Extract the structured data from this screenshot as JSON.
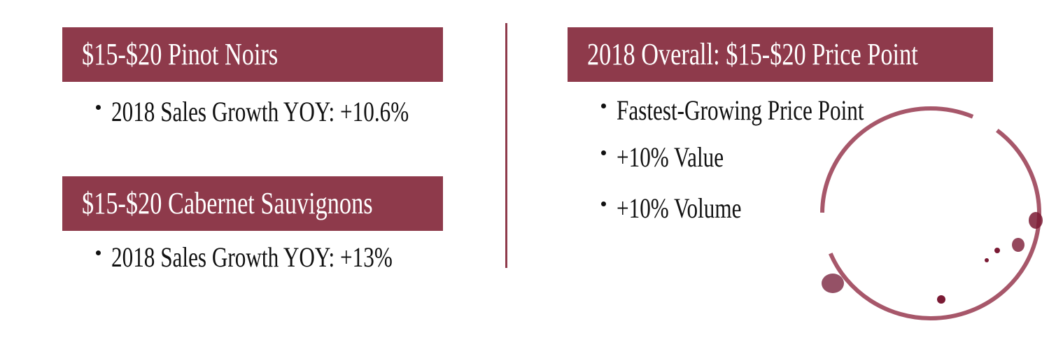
{
  "left_panels": [
    {
      "title": "$15-$20 Pinot Noirs",
      "bullets": [
        "2018 Sales Growth YOY: +10.6%"
      ]
    },
    {
      "title": "$15-$20 Cabernet Sauvignons",
      "bullets": [
        "2018 Sales Growth YOY: +13%"
      ]
    }
  ],
  "right_panel": {
    "title": "2018 Overall: $15-$20 Price Point",
    "bullets": [
      "Fastest-Growing Price Point",
      "+10% Value",
      "+10% Volume"
    ]
  }
}
